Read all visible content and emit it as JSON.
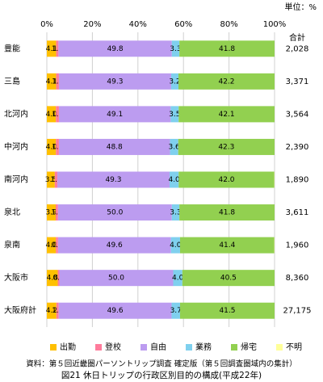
{
  "chart_data": {
    "type": "stacked-bar-horizontal",
    "unit": "単位：%",
    "categories": [
      "豊能",
      "三島",
      "北河内",
      "中河内",
      "南河内",
      "泉北",
      "泉南",
      "大阪市",
      "大阪府計"
    ],
    "series": [
      {
        "name": "出勤",
        "color": "#ffc000",
        "values": [
          4.1,
          4.1,
          4.0,
          4.0,
          3.5,
          3.9,
          4.0,
          4.8,
          4.2
        ],
        "value_labels": [
          "4.1",
          "4.1",
          "4.0",
          "4.0",
          "3.5",
          "3.9",
          "4.0",
          "4.8",
          "4.2"
        ]
      },
      {
        "name": "登校",
        "color": "#ff7c9c",
        "values": [
          1.0,
          1.2,
          1.3,
          1.3,
          1.1,
          1.0,
          0.9,
          0.7,
          1.0
        ],
        "value_labels": [
          "1.0",
          "1.2",
          "1.3",
          "1.3",
          "1.1",
          "1.0",
          "0.9",
          "0.7",
          "1.0"
        ]
      },
      {
        "name": "自由",
        "color": "#bc9cf0",
        "values": [
          49.8,
          49.3,
          49.1,
          48.8,
          49.3,
          50.0,
          49.6,
          50.0,
          49.6
        ],
        "value_labels": [
          "49.8",
          "49.3",
          "49.1",
          "48.8",
          "49.3",
          "50.0",
          "49.6",
          "50.0",
          "49.6"
        ]
      },
      {
        "name": "業務",
        "color": "#7fd0ee",
        "values": [
          3.3,
          3.2,
          3.5,
          3.6,
          4.0,
          3.3,
          4.0,
          4.0,
          3.7
        ],
        "value_labels": [
          "3.3",
          "3.2",
          "3.5",
          "3.6",
          "4.0",
          "3.3",
          "4.0",
          "4.0",
          "3.7"
        ]
      },
      {
        "name": "帰宅",
        "color": "#92d050",
        "values": [
          41.8,
          42.2,
          42.1,
          42.3,
          42.0,
          41.8,
          41.4,
          40.5,
          41.5
        ],
        "value_labels": [
          "41.8",
          "42.2",
          "42.1",
          "42.3",
          "42.0",
          "41.8",
          "41.4",
          "40.5",
          "41.5"
        ]
      },
      {
        "name": "不明",
        "color": "#ffff99",
        "values": [
          0,
          0,
          0,
          0,
          0.1,
          0,
          0.1,
          0,
          0
        ]
      }
    ],
    "totals": {
      "header": "合計",
      "values": [
        2028,
        3371,
        3564,
        2390,
        1890,
        3611,
        1960,
        8360,
        27175
      ],
      "value_labels": [
        "2,028",
        "3,371",
        "3,564",
        "2,390",
        "1,890",
        "3,611",
        "1,960",
        "8,360",
        "27,175"
      ]
    },
    "xlim": [
      0,
      100
    ],
    "xticks": [
      {
        "value": 0,
        "label": "0%"
      },
      {
        "value": 20,
        "label": "20%"
      },
      {
        "value": 40,
        "label": "40%"
      },
      {
        "value": 60,
        "label": "60%"
      },
      {
        "value": 80,
        "label": "80%"
      },
      {
        "value": 100,
        "label": "100%"
      }
    ],
    "grid": true,
    "source": "資料：第５回近畿圏パーソントリップ調査 確定版（第５回調査圏域内の集計）",
    "title": "図21 休日トリップの行政区別目的の構成(平成22年)"
  }
}
